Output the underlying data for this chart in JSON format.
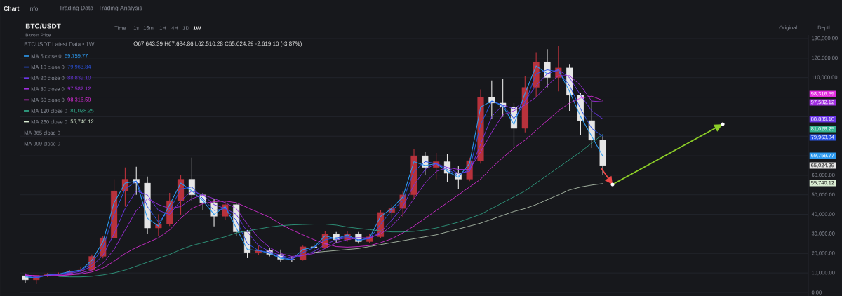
{
  "chart_data": {
    "type": "candlestick",
    "title": "BTC/USDT",
    "subtitle": "Bitcoin Price",
    "categories": [
      null,
      null,
      null,
      null,
      null,
      null,
      null,
      null,
      null,
      null,
      null,
      null,
      null,
      null,
      null,
      null,
      null,
      null,
      null,
      null,
      null,
      null,
      null,
      null,
      null,
      null,
      null,
      null,
      null,
      null,
      null,
      null,
      null,
      null,
      null,
      null,
      null,
      null,
      null,
      null,
      null,
      null,
      null,
      null,
      null,
      null,
      null,
      null,
      null,
      null,
      null,
      null,
      null,
      null,
      null,
      null,
      null,
      null,
      null,
      null,
      null,
      null,
      null,
      null,
      null,
      null,
      null,
      null,
      null,
      null,
      null
    ],
    "ohlc": [
      [
        8600,
        9800,
        5000,
        6500
      ],
      [
        6500,
        9000,
        4300,
        8800
      ],
      [
        8800,
        10000,
        8000,
        9200
      ],
      [
        9200,
        10200,
        8500,
        9500
      ],
      [
        9500,
        11500,
        9000,
        11000
      ],
      [
        11000,
        13000,
        10500,
        11500
      ],
      [
        11500,
        19500,
        11000,
        18500
      ],
      [
        18500,
        29000,
        17500,
        28000
      ],
      [
        28000,
        58000,
        28000,
        52000
      ],
      [
        52000,
        64000,
        44000,
        58000
      ],
      [
        58000,
        64400,
        50000,
        56000
      ],
      [
        56000,
        59300,
        30000,
        33000
      ],
      [
        33000,
        40000,
        29000,
        35000
      ],
      [
        35000,
        51000,
        34000,
        47000
      ],
      [
        47000,
        60000,
        39500,
        58000
      ],
      [
        58000,
        69000,
        47000,
        50000
      ],
      [
        50000,
        51000,
        42000,
        46000
      ],
      [
        46000,
        48000,
        33800,
        39000
      ],
      [
        39000,
        47000,
        37000,
        45000
      ],
      [
        45000,
        46000,
        29000,
        31000
      ],
      [
        31000,
        32000,
        17600,
        20500
      ],
      [
        20500,
        24000,
        19000,
        21500
      ],
      [
        21500,
        23000,
        18500,
        19500
      ],
      [
        19500,
        22000,
        15500,
        17000
      ],
      [
        17000,
        18500,
        15800,
        16800
      ],
      [
        16800,
        24000,
        16300,
        23400
      ],
      [
        23400,
        25000,
        19800,
        23000
      ],
      [
        23000,
        31500,
        22500,
        30000
      ],
      [
        30000,
        31000,
        25500,
        27000
      ],
      [
        27000,
        31500,
        26000,
        30000
      ],
      [
        30000,
        31000,
        25000,
        26000
      ],
      [
        26000,
        30000,
        25500,
        28500
      ],
      [
        28500,
        42000,
        28000,
        41000
      ],
      [
        41000,
        45000,
        38000,
        43000
      ],
      [
        43000,
        52000,
        38500,
        50000
      ],
      [
        50000,
        73400,
        48000,
        70000
      ],
      [
        70000,
        72000,
        60000,
        64000
      ],
      [
        64000,
        71500,
        58000,
        67000
      ],
      [
        67000,
        71000,
        56500,
        61000
      ],
      [
        61000,
        65000,
        53000,
        58000
      ],
      [
        58000,
        69000,
        57000,
        67500
      ],
      [
        67500,
        104000,
        66000,
        100000
      ],
      [
        100000,
        108500,
        89000,
        97000
      ],
      [
        97000,
        109500,
        90000,
        95000
      ],
      [
        95000,
        97000,
        74500,
        84000
      ],
      [
        84000,
        111000,
        82000,
        105000
      ],
      [
        105000,
        123000,
        100000,
        118000
      ],
      [
        118000,
        124500,
        105000,
        110000
      ],
      [
        110000,
        126200,
        103000,
        115000
      ],
      [
        115000,
        117000,
        93000,
        101000
      ],
      [
        101000,
        102000,
        80500,
        88000
      ],
      [
        88000,
        98000,
        74000,
        78000
      ],
      [
        78000,
        80000,
        60000,
        65024.29
      ],
      null,
      null,
      null,
      null,
      null,
      null,
      null,
      null,
      null,
      null,
      null,
      null,
      null,
      null,
      null,
      null,
      null,
      null
    ],
    "colors": [
      "#e6e6e6",
      "#b8323c",
      "#b8323c",
      "#b8323c",
      "#b8323c",
      "#b8323c",
      "#b8323c",
      "#b8323c",
      "#b8323c",
      "#b8323c",
      "#e6e6e6",
      "#e6e6e6",
      "#b8323c",
      "#b8323c",
      "#b8323c",
      "#e6e6e6",
      "#e6e6e6",
      "#e6e6e6",
      "#b8323c",
      "#e6e6e6",
      "#e6e6e6",
      "#b8323c",
      "#e6e6e6",
      "#e6e6e6",
      "#e6e6e6",
      "#b8323c",
      "#e6e6e6",
      "#b8323c",
      "#e6e6e6",
      "#b8323c",
      "#e6e6e6",
      "#b8323c",
      "#b8323c",
      "#b8323c",
      "#b8323c",
      "#b8323c",
      "#e6e6e6",
      "#b8323c",
      "#e6e6e6",
      "#e6e6e6",
      "#b8323c",
      "#b8323c",
      "#e6e6e6",
      "#e6e6e6",
      "#e6e6e6",
      "#b8323c",
      "#b8323c",
      "#e6e6e6",
      "#b8323c",
      "#e6e6e6",
      "#e6e6e6",
      "#e6e6e6",
      "#e6e6e6",
      null,
      null,
      null,
      null,
      null,
      null,
      null,
      null,
      null,
      null,
      null,
      null,
      null,
      null,
      null,
      null,
      null,
      null
    ],
    "series": [
      {
        "name": "MA 5 close 0",
        "type": "line",
        "color": "#2e9bf0",
        "values": [
          8000,
          7500,
          9000,
          9400,
          10700,
          11400,
          16500,
          26000,
          46000,
          56000,
          57000,
          38000,
          34000,
          45000,
          56000,
          52000,
          47000,
          40000,
          44000,
          33000,
          22000,
          21500,
          20000,
          17500,
          16900,
          22000,
          23200,
          29000,
          27500,
          29500,
          26500,
          28000,
          39000,
          43000,
          49000,
          67000,
          65000,
          66000,
          62000,
          59000,
          66000,
          95000,
          98000,
          95500,
          86000,
          102000,
          116000,
          112000,
          114000,
          103000,
          90000,
          80000,
          69759.77,
          null,
          null,
          null,
          null,
          null,
          null,
          null,
          null,
          null,
          null,
          null,
          null,
          null,
          null,
          null,
          null,
          null,
          null
        ]
      },
      {
        "name": "MA 10 close 0",
        "type": "line",
        "color": "#2b55e6",
        "values": [
          8500,
          7500,
          8900,
          9300,
          10300,
          11300,
          15000,
          23000,
          40000,
          53000,
          57000,
          44000,
          36000,
          42000,
          53000,
          54000,
          48000,
          42000,
          43000,
          37000,
          25000,
          21500,
          20500,
          18000,
          17000,
          20500,
          23000,
          27000,
          28000,
          28500,
          27000,
          27500,
          35000,
          42000,
          47000,
          62000,
          67000,
          66000,
          63000,
          60000,
          63000,
          86000,
          98000,
          96000,
          89000,
          97000,
          112000,
          114000,
          113000,
          106000,
          94000,
          84000,
          79963.84,
          null,
          null,
          null,
          null,
          null,
          null,
          null,
          null,
          null,
          null,
          null,
          null,
          null,
          null,
          null,
          null,
          null,
          null
        ]
      },
      {
        "name": "MA 20 close 0",
        "type": "line",
        "color": "#6b35e8",
        "values": [
          9000,
          8000,
          8800,
          9200,
          9800,
          10800,
          13500,
          19000,
          30000,
          43000,
          52000,
          50000,
          42000,
          40000,
          47000,
          52000,
          50000,
          45000,
          43000,
          40000,
          31000,
          24000,
          21000,
          19000,
          17500,
          19000,
          21000,
          24500,
          27000,
          28000,
          28000,
          27500,
          31000,
          37000,
          44000,
          55000,
          63000,
          66000,
          64000,
          61000,
          62000,
          76000,
          90000,
          96000,
          94000,
          98000,
          106000,
          112000,
          114000,
          110000,
          101000,
          93000,
          88839.1,
          null,
          null,
          null,
          null,
          null,
          null,
          null,
          null,
          null,
          null,
          null,
          null,
          null,
          null,
          null,
          null,
          null,
          null
        ]
      },
      {
        "name": "MA 30 close 0",
        "type": "line",
        "color": "#a12ee0",
        "values": [
          9000,
          8500,
          8500,
          8800,
          9200,
          10000,
          11500,
          15000,
          22000,
          32000,
          42000,
          48000,
          45000,
          43000,
          44000,
          48000,
          50000,
          48000,
          46000,
          43000,
          35000,
          28000,
          23000,
          20000,
          18500,
          19000,
          20000,
          22500,
          25500,
          27000,
          28000,
          28000,
          30000,
          34000,
          40000,
          48000,
          56000,
          62000,
          64000,
          63000,
          63000,
          72000,
          82000,
          91000,
          93000,
          96000,
          100000,
          106000,
          111000,
          111000,
          106000,
          98000,
          97582.12,
          null,
          null,
          null,
          null,
          null,
          null,
          null,
          null,
          null,
          null,
          null,
          null,
          null,
          null,
          null,
          null,
          null,
          null
        ]
      },
      {
        "name": "MA 60 close 0",
        "type": "line",
        "color": "#e22ee0",
        "values": [
          9000,
          8500,
          8500,
          8600,
          9000,
          9500,
          10500,
          12500,
          16000,
          20000,
          23000,
          25500,
          28000,
          32000,
          38000,
          43000,
          45500,
          46500,
          46800,
          46000,
          43500,
          41000,
          38500,
          35000,
          32000,
          29500,
          27000,
          25000,
          23500,
          23200,
          23500,
          24000,
          25500,
          27500,
          30500,
          34000,
          38000,
          42000,
          46000,
          50000,
          54000,
          58000,
          64000,
          69000,
          74000,
          78000,
          83000,
          88000,
          93000,
          97000,
          99500,
          100500,
          98316.59,
          null,
          null,
          null,
          null,
          null,
          null,
          null,
          null,
          null,
          null,
          null,
          null,
          null,
          null,
          null,
          null,
          null,
          null
        ]
      },
      {
        "name": "MA 120 close 0",
        "type": "line",
        "color": "#33b391",
        "values": [
          null,
          null,
          null,
          8200,
          8000,
          8000,
          8300,
          9000,
          10000,
          11500,
          13500,
          15500,
          17500,
          19500,
          22000,
          24000,
          25500,
          27000,
          28500,
          30500,
          31500,
          32500,
          33500,
          34200,
          34600,
          34800,
          35000,
          35000,
          34500,
          33500,
          32800,
          32200,
          31500,
          31000,
          31000,
          31300,
          32000,
          33000,
          34500,
          36000,
          38000,
          40000,
          43000,
          46000,
          49000,
          52000,
          56000,
          60000,
          64000,
          68000,
          72000,
          76500,
          81028.25,
          null,
          null,
          null,
          null,
          null,
          null,
          null,
          null,
          null,
          null,
          null,
          null,
          null,
          null,
          null,
          null,
          null,
          null
        ]
      },
      {
        "name": "MA 250 close 0",
        "type": "line",
        "color": "#d9ecd2",
        "values": [
          null,
          null,
          null,
          null,
          null,
          null,
          null,
          null,
          null,
          null,
          null,
          null,
          null,
          null,
          null,
          null,
          null,
          null,
          null,
          null,
          null,
          null,
          null,
          null,
          null,
          null,
          20500,
          21000,
          21500,
          22000,
          22500,
          23500,
          24500,
          25500,
          26500,
          27500,
          28500,
          29500,
          31000,
          32500,
          34000,
          35500,
          37500,
          39500,
          41500,
          43000,
          45000,
          47500,
          50000,
          52500,
          54000,
          55000,
          55740.12,
          null,
          null,
          null,
          null,
          null,
          null,
          null,
          null,
          null,
          null,
          null,
          null,
          null,
          null,
          null,
          null,
          null,
          null
        ]
      }
    ],
    "ylim": [
      -1800,
      131800
    ],
    "yticks": [
      {
        "value": 0,
        "label": "0.00"
      },
      {
        "value": 10000,
        "label": "10,000.00"
      },
      {
        "value": 20000,
        "label": "20,000.00"
      },
      {
        "value": 30000,
        "label": "30,000.00"
      },
      {
        "value": 40000,
        "label": "40,000.00"
      },
      {
        "value": 50000,
        "label": "50,000.00"
      },
      {
        "value": 60000,
        "label": "60,000.00"
      },
      {
        "value": 70000,
        "label": null
      },
      {
        "value": 80000,
        "label": null
      },
      {
        "value": 90000,
        "label": null
      },
      {
        "value": 100000,
        "label": null
      },
      {
        "value": 110000,
        "label": "110,000.00"
      },
      {
        "value": 120000,
        "label": "120,000.00"
      },
      {
        "value": 130000,
        "label": "130,000.00"
      }
    ],
    "grid": "y",
    "legend": "top left",
    "annotations": [
      "BTCUSDT Latest Data • 1W",
      "O67,643.39 H67,684.86 L62,510.28 C65,024.29 -2,619.10 (-3.87%)",
      "MA 865 close 0",
      "MA 999 close 0",
      "Chart",
      "Info",
      "Trading Data",
      "Trading Analysis",
      "Time",
      "1s",
      "15m",
      "1H",
      "4H",
      "1D",
      "1W",
      "Original",
      "Depth",
      "69,759.77",
      "79,963.84",
      "88,839.10",
      "97,582.12",
      "98,316.59",
      "81,028.25",
      "55,740.12",
      "98,316.59",
      "97,582.12",
      "88,839.10",
      "81,028.25",
      "79,963.84",
      "69,759.77",
      "65,024.29",
      "55,740.12"
    ]
  }
}
